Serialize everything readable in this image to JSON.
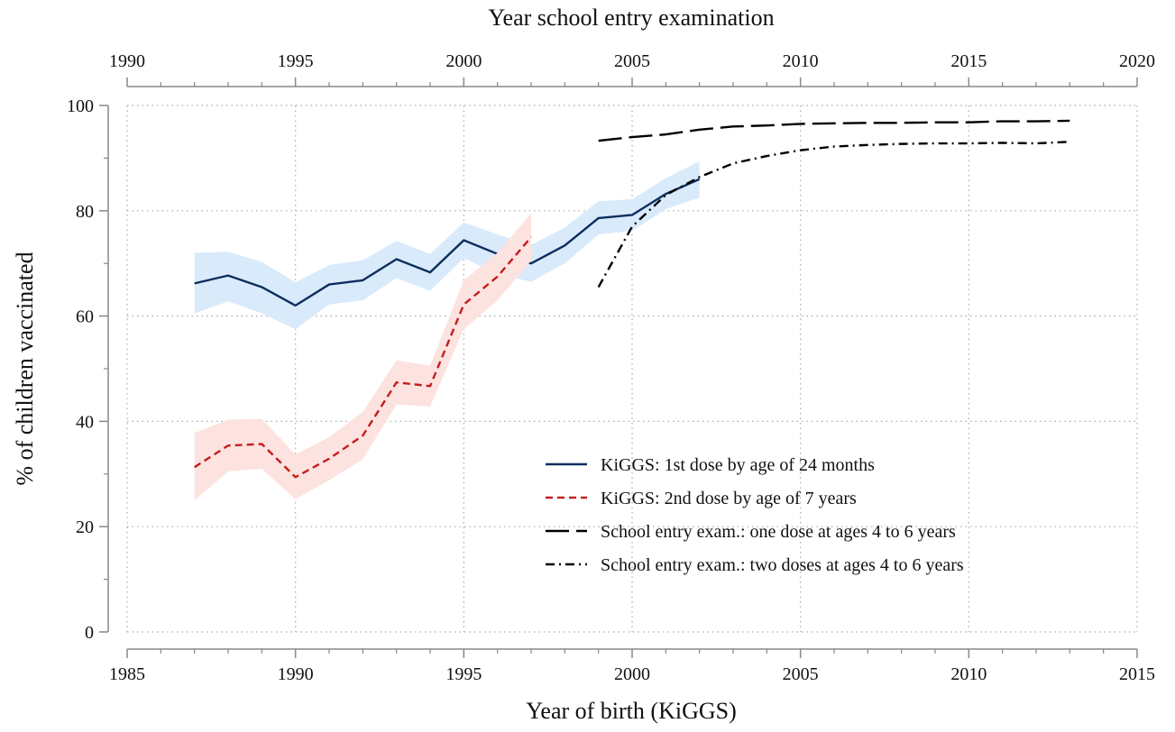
{
  "chart_data": {
    "type": "line",
    "xlabel": "Year of birth (KiGGS)",
    "x2label": "Year school entry examination",
    "ylabel": "% of children vaccinated",
    "xlim": [
      1985,
      2015
    ],
    "xticks": [
      1985,
      1990,
      1995,
      2000,
      2005,
      2010,
      2015
    ],
    "xminorticks": [
      1986,
      1987,
      1988,
      1989,
      1991,
      1992,
      1993,
      1994,
      1996,
      1997,
      1998,
      1999,
      2001,
      2002,
      2003,
      2004,
      2006,
      2007,
      2008,
      2009,
      2011,
      2012,
      2013,
      2014
    ],
    "x2lim": [
      1990,
      2020
    ],
    "x2ticks": [
      1990,
      1995,
      2000,
      2005,
      2010,
      2015,
      2020
    ],
    "x2minorticks": [
      1991,
      1992,
      1993,
      1994,
      1996,
      1997,
      1998,
      1999,
      2001,
      2002,
      2003,
      2004,
      2006,
      2007,
      2008,
      2009,
      2011,
      2012,
      2013,
      2014,
      2016,
      2017,
      2018,
      2019
    ],
    "ylim": [
      0,
      100
    ],
    "yticks": [
      0,
      20,
      40,
      60,
      80,
      100
    ],
    "yminorticks": [
      10,
      30,
      50,
      70,
      90
    ],
    "grid": true,
    "legend": "lower right",
    "series": [
      {
        "name": "KiGGS: 1st dose by age of 24 months",
        "color": "#0d2d5e",
        "dash": "solid",
        "band_color": "#d9eafb",
        "x": [
          1987,
          1988,
          1989,
          1990,
          1991,
          1992,
          1993,
          1994,
          1995,
          1996,
          1997,
          1998,
          1999,
          2000,
          2001,
          2002
        ],
        "values": [
          66.2,
          67.7,
          65.5,
          62.0,
          66.0,
          66.8,
          70.8,
          68.3,
          74.4,
          71.8,
          70.0,
          73.4,
          78.6,
          79.2,
          83.2,
          86.0
        ],
        "lower": [
          60.5,
          62.8,
          60.5,
          57.5,
          62.2,
          63.0,
          67.2,
          64.8,
          71.0,
          68.0,
          66.5,
          70.0,
          75.5,
          76.2,
          80.3,
          82.5
        ],
        "upper": [
          72.0,
          72.2,
          70.3,
          66.4,
          69.7,
          70.6,
          74.3,
          71.8,
          77.8,
          75.5,
          73.5,
          76.8,
          81.8,
          82.2,
          86.2,
          89.4
        ]
      },
      {
        "name": "KiGGS: 2nd dose by age of 7 years",
        "color": "#c31e1e",
        "dash": "dashed",
        "band_color": "#fde3df",
        "x": [
          1987,
          1988,
          1989,
          1990,
          1991,
          1992,
          1993,
          1994,
          1995,
          1996,
          1997
        ],
        "values": [
          31.3,
          35.4,
          35.7,
          29.4,
          32.9,
          37.3,
          47.4,
          46.7,
          62.2,
          67.5,
          75.0
        ],
        "lower": [
          25.0,
          30.5,
          31.0,
          25.2,
          28.8,
          32.8,
          43.2,
          42.8,
          57.5,
          63.0,
          70.5
        ],
        "upper": [
          37.8,
          40.3,
          40.5,
          33.7,
          37.0,
          41.8,
          51.6,
          50.6,
          66.8,
          72.0,
          79.5
        ]
      },
      {
        "name": "School entry exam.: one dose at ages 4 to 6 years",
        "color": "#000000",
        "dash": "longdash",
        "x": [
          1999,
          2000,
          2001,
          2002,
          2003,
          2004,
          2005,
          2006,
          2007,
          2008,
          2009,
          2010,
          2011,
          2012,
          2013
        ],
        "values": [
          93.3,
          94.0,
          94.5,
          95.4,
          96.0,
          96.2,
          96.5,
          96.6,
          96.7,
          96.7,
          96.8,
          96.8,
          97.0,
          97.0,
          97.1
        ]
      },
      {
        "name": "School entry exam.: two doses at ages 4 to 6 years",
        "color": "#000000",
        "dash": "dashdot",
        "x": [
          1999,
          2000,
          2001,
          2002,
          2003,
          2004,
          2005,
          2006,
          2007,
          2008,
          2009,
          2010,
          2011,
          2012,
          2013
        ],
        "values": [
          65.5,
          77.0,
          83.0,
          86.4,
          89.0,
          90.4,
          91.5,
          92.2,
          92.5,
          92.7,
          92.8,
          92.8,
          92.9,
          92.8,
          93.1
        ]
      }
    ]
  }
}
